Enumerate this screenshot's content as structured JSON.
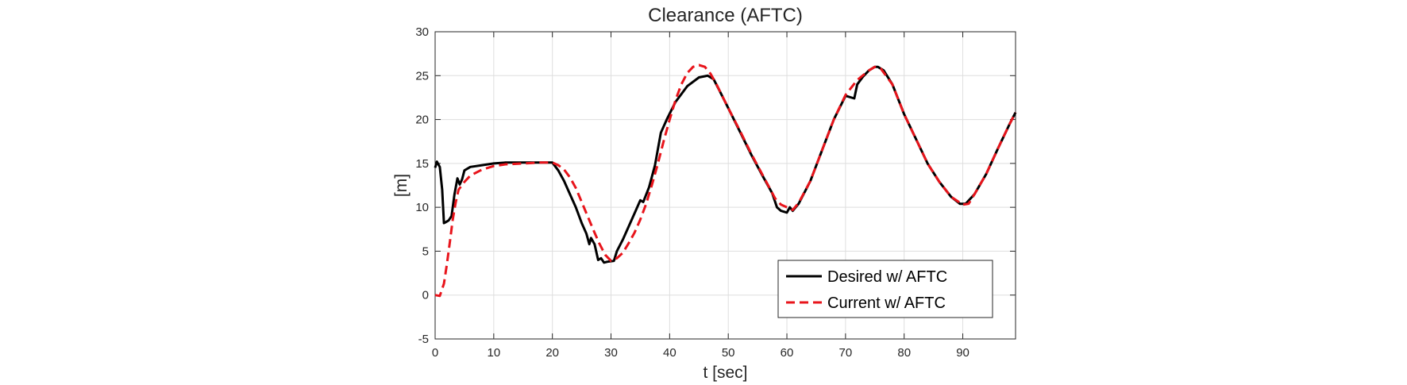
{
  "chart_data": {
    "type": "line",
    "title": "Clearance (AFTC)",
    "xlabel": "t [sec]",
    "ylabel": "[m]",
    "xlim": [
      0,
      99
    ],
    "ylim": [
      -5,
      30
    ],
    "xticks": [
      0,
      10,
      20,
      30,
      40,
      50,
      60,
      70,
      80,
      90
    ],
    "yticks": [
      -5,
      0,
      5,
      10,
      15,
      20,
      25,
      30
    ],
    "grid": true,
    "legend_position": "bottom-right",
    "series": [
      {
        "name": "Desired w/ AFTC",
        "color": "#000000",
        "style": "solid",
        "x": [
          0,
          0.3,
          0.8,
          1.2,
          1.5,
          1.8,
          2.3,
          2.8,
          3.3,
          3.8,
          4.2,
          4.6,
          5,
          6,
          8,
          10,
          12,
          15,
          18,
          20,
          21,
          22,
          23,
          24,
          25,
          25.8,
          26.3,
          26.6,
          27.2,
          27.8,
          28.3,
          28.8,
          29.4,
          30.5,
          31,
          32,
          33,
          34,
          35,
          35.5,
          36.5,
          37.5,
          38.5,
          39.5,
          41,
          43,
          45,
          46.5,
          47.5,
          48.5,
          50,
          52,
          54,
          56,
          57.5,
          58.3,
          59,
          60,
          60.5,
          61,
          62,
          64,
          66,
          68,
          70,
          71.5,
          72,
          73,
          74,
          75,
          75.5,
          76.5,
          78,
          80,
          82,
          84,
          86,
          88,
          89.5,
          90.5,
          92,
          94,
          96,
          98,
          99
        ],
        "y": [
          14.5,
          15.2,
          14.6,
          12,
          8.2,
          8.3,
          8.5,
          9.0,
          11.5,
          13.3,
          12.6,
          13.2,
          14.2,
          14.6,
          14.8,
          15.0,
          15.1,
          15.1,
          15.1,
          15.1,
          14.2,
          13.0,
          11.5,
          10.0,
          8.2,
          7.0,
          5.8,
          6.5,
          5.8,
          4.0,
          4.2,
          3.7,
          3.8,
          3.9,
          5.0,
          6.3,
          7.8,
          9.3,
          10.8,
          10.6,
          12.3,
          14.8,
          18.5,
          20.0,
          22.0,
          23.8,
          24.8,
          25.0,
          24.6,
          23.3,
          21.3,
          18.6,
          15.9,
          13.4,
          11.6,
          10.0,
          9.6,
          9.4,
          10.0,
          9.6,
          10.4,
          13.0,
          16.5,
          20.0,
          22.7,
          22.4,
          24.0,
          24.9,
          25.6,
          26.0,
          26.0,
          25.6,
          24.0,
          20.6,
          17.8,
          15.0,
          12.9,
          11.2,
          10.4,
          10.4,
          11.5,
          13.8,
          16.7,
          19.5,
          20.8
        ]
      },
      {
        "name": "Current w/ AFTC",
        "color": "#e8141b",
        "style": "dashed",
        "x": [
          0,
          0.8,
          1.5,
          2,
          2.5,
          3,
          3.5,
          4,
          5,
          6,
          8,
          10,
          12,
          15,
          18,
          20,
          21,
          22,
          23,
          24,
          25,
          26,
          27,
          28,
          29,
          30,
          31,
          32,
          33,
          34,
          35,
          36,
          37,
          38,
          39,
          40,
          41,
          42,
          43,
          44,
          45,
          46,
          47,
          48,
          50,
          52,
          54,
          56,
          58,
          59,
          60,
          61,
          62,
          64,
          66,
          68,
          70,
          72,
          74,
          75,
          76,
          78,
          80,
          82,
          84,
          86,
          88,
          90,
          91,
          92,
          94,
          96,
          98,
          99
        ],
        "y": [
          0.0,
          -0.1,
          1.3,
          3.5,
          6.0,
          8.6,
          10.5,
          12.0,
          12.9,
          13.6,
          14.3,
          14.7,
          14.9,
          15.0,
          15.1,
          15.1,
          14.8,
          14.3,
          13.4,
          12.2,
          10.6,
          9.0,
          7.4,
          5.9,
          4.6,
          3.9,
          4.2,
          4.8,
          5.9,
          7.1,
          8.6,
          10.4,
          12.6,
          15.0,
          17.6,
          20.0,
          22.2,
          24.0,
          25.3,
          26.0,
          26.2,
          26.0,
          25.2,
          24.0,
          21.3,
          18.7,
          16.0,
          13.5,
          11.0,
          10.3,
          10.0,
          9.7,
          10.5,
          13.0,
          16.5,
          20.0,
          22.8,
          24.5,
          25.6,
          26.0,
          25.8,
          24.0,
          20.6,
          17.8,
          15.0,
          12.9,
          11.2,
          10.3,
          10.4,
          11.5,
          13.8,
          16.7,
          19.5,
          20.8
        ]
      }
    ]
  }
}
